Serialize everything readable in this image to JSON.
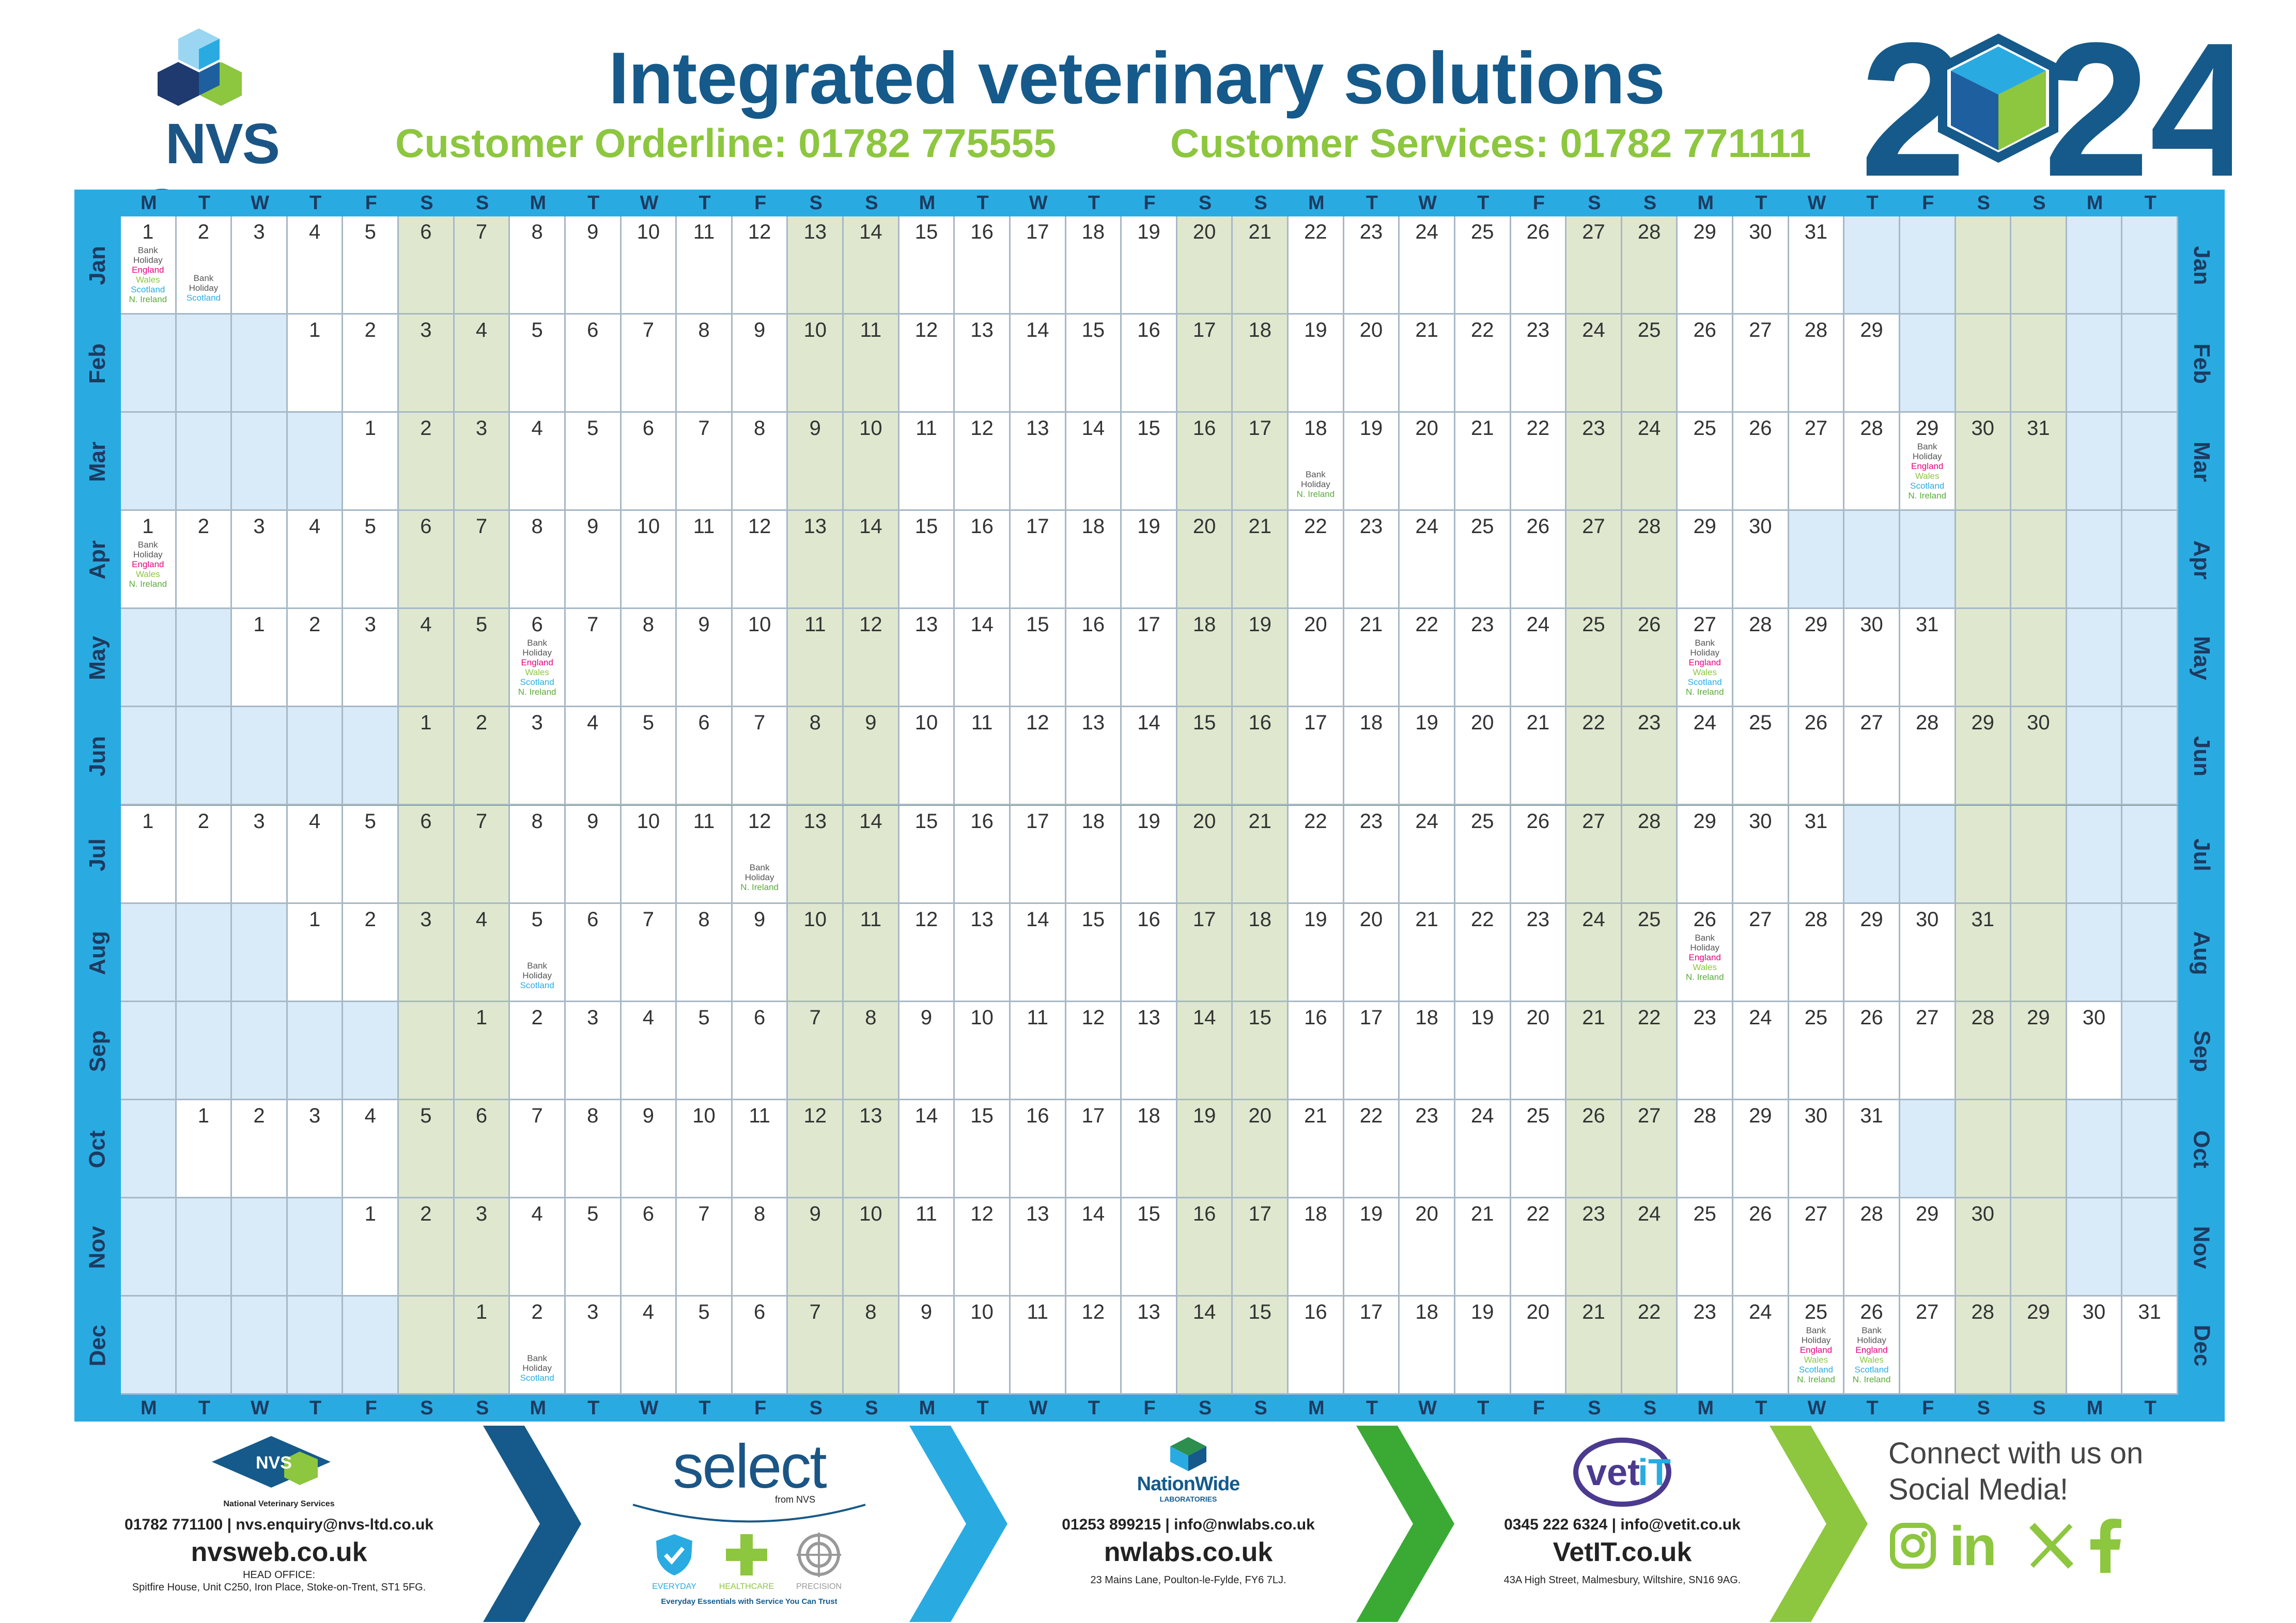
{
  "header": {
    "brand": "NVS Group",
    "headline": "Integrated veterinary solutions",
    "orderline": "Customer Orderline: 01782 775555",
    "services": "Customer Services: 01782 771111",
    "year_left": "2",
    "year_right": "24"
  },
  "calendar": {
    "day_letters": [
      "M",
      "T",
      "W",
      "T",
      "F",
      "S",
      "S"
    ],
    "months": [
      {
        "name": "Jan",
        "days": 31,
        "start": 0
      },
      {
        "name": "Feb",
        "days": 29,
        "start": 3
      },
      {
        "name": "Mar",
        "days": 31,
        "start": 4
      },
      {
        "name": "Apr",
        "days": 30,
        "start": 0
      },
      {
        "name": "May",
        "days": 31,
        "start": 2
      },
      {
        "name": "Jun",
        "days": 30,
        "start": 5
      },
      {
        "name": "Jul",
        "days": 31,
        "start": 0
      },
      {
        "name": "Aug",
        "days": 31,
        "start": 3
      },
      {
        "name": "Sep",
        "days": 30,
        "start": 6
      },
      {
        "name": "Oct",
        "days": 31,
        "start": 1
      },
      {
        "name": "Nov",
        "days": 30,
        "start": 4
      },
      {
        "name": "Dec",
        "days": 31,
        "start": 6
      }
    ],
    "holidays": [
      {
        "month": 0,
        "day": 1,
        "lines": [
          "Bank",
          "Holiday",
          "England",
          "Wales",
          "Scotland",
          "N. Ireland"
        ]
      },
      {
        "month": 0,
        "day": 2,
        "lines": [
          "Bank",
          "Holiday",
          "Scotland"
        ]
      },
      {
        "month": 2,
        "day": 18,
        "lines": [
          "Bank",
          "Holiday",
          "N. Ireland"
        ]
      },
      {
        "month": 2,
        "day": 29,
        "lines": [
          "Bank",
          "Holiday",
          "England",
          "Wales",
          "Scotland",
          "N. Ireland"
        ]
      },
      {
        "month": 3,
        "day": 1,
        "lines": [
          "Bank",
          "Holiday",
          "England",
          "Wales",
          "N. Ireland"
        ]
      },
      {
        "month": 4,
        "day": 6,
        "lines": [
          "Bank",
          "Holiday",
          "England",
          "Wales",
          "Scotland",
          "N. Ireland"
        ]
      },
      {
        "month": 4,
        "day": 27,
        "lines": [
          "Bank",
          "Holiday",
          "England",
          "Wales",
          "Scotland",
          "N. Ireland"
        ]
      },
      {
        "month": 6,
        "day": 12,
        "lines": [
          "Bank",
          "Holiday",
          "N. Ireland"
        ]
      },
      {
        "month": 7,
        "day": 5,
        "lines": [
          "Bank",
          "Holiday",
          "Scotland"
        ]
      },
      {
        "month": 7,
        "day": 26,
        "lines": [
          "Bank",
          "Holiday",
          "England",
          "Wales",
          "N. Ireland"
        ]
      },
      {
        "month": 11,
        "day": 2,
        "lines": [
          "Bank",
          "Holiday",
          "Scotland"
        ]
      },
      {
        "month": 11,
        "day": 25,
        "lines": [
          "Bank",
          "Holiday",
          "England",
          "Wales",
          "Scotland",
          "N. Ireland"
        ]
      },
      {
        "month": 11,
        "day": 26,
        "lines": [
          "Bank",
          "Holiday",
          "England",
          "Wales",
          "Scotland",
          "N. Ireland"
        ]
      }
    ]
  },
  "footer": {
    "nvs": {
      "badge": "NVS",
      "name": "National Veterinary Services",
      "contact": "01782 771100  |  nvs.enquiry@nvs-ltd.co.uk",
      "web": "nvsweb.co.uk",
      "office_label": "HEAD OFFICE:",
      "address": "Spitfire House, Unit C250, Iron Place, Stoke-on-Trent, ST1 5FG."
    },
    "select": {
      "brand": "select",
      "sub": "from NVS",
      "badges": [
        "EVERYDAY",
        "HEALTHCARE",
        "PRECISION"
      ],
      "tagline": "Everyday Essentials with Service You Can Trust"
    },
    "nwl": {
      "brand": "NationWide",
      "sub": "LABORATORIES",
      "contact": "01253 899215  |  info@nwlabs.co.uk",
      "web": "nwlabs.co.uk",
      "address": "23 Mains Lane, Poulton-le-Fylde, FY6 7LJ."
    },
    "vetit": {
      "brand_a": "vet",
      "brand_b": "iT",
      "contact": "0345 222 6324  |  info@vetit.co.uk",
      "web": "VetIT.co.uk",
      "address": "43A High Street, Malmesbury, Wiltshire, SN16 9AG."
    },
    "social": {
      "line1": "Connect with us on",
      "line2": "Social Media!",
      "linkedin": "in"
    }
  },
  "colors": {
    "brand_blue": "#155a8a",
    "brand_green": "#8dc63f",
    "frame_blue": "#29abe2",
    "weekend_green": "#dfe8cf",
    "blank_blue": "#d9ebf8"
  }
}
